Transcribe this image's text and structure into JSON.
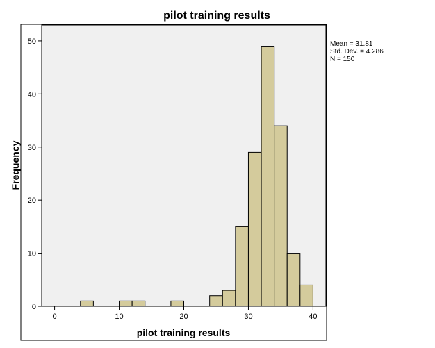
{
  "chart_data": {
    "type": "bar",
    "title": "pilot training results",
    "xlabel": "pilot training results",
    "ylabel": "Frequency",
    "bin_width": 2,
    "bin_starts": [
      4,
      10,
      12,
      18,
      24,
      26,
      28,
      30,
      32,
      34,
      36,
      38
    ],
    "values": [
      1,
      1,
      1,
      1,
      2,
      3,
      15,
      29,
      49,
      34,
      10,
      4
    ],
    "xlim": [
      -2,
      42
    ],
    "ylim": [
      0,
      53
    ],
    "x_ticks": [
      0,
      10,
      20,
      30,
      40
    ],
    "y_ticks": [
      0,
      10,
      20,
      30,
      40,
      50
    ],
    "grid": false,
    "colors": {
      "bar_fill": "#d4cb9c",
      "bar_stroke": "#000000",
      "plot_background": "#f0f0f0"
    },
    "stats": {
      "mean": "Mean = 31.81",
      "std_dev": "Std. Dev. = 4.286",
      "n": "N = 150"
    }
  }
}
